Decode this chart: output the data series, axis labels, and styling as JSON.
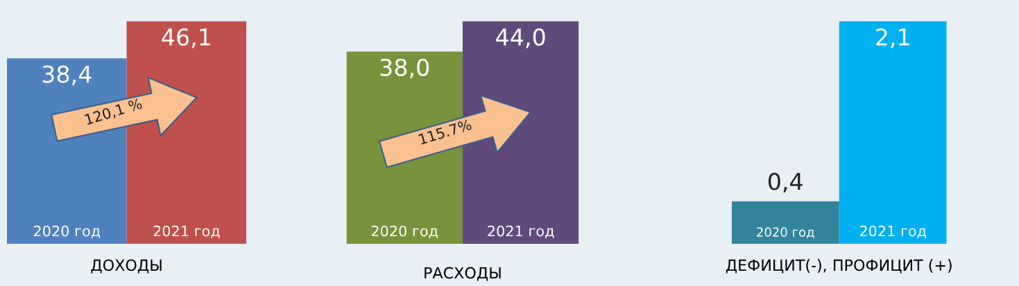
{
  "chart_data": [
    {
      "type": "bar",
      "xlabel": "ДОХОДЫ",
      "categories": [
        "2020 год",
        "2021 год"
      ],
      "values": [
        38.4,
        46.1
      ],
      "colors": [
        "#4f81bd",
        "#c0504d"
      ],
      "value_labels": [
        "38,4",
        "46,1"
      ],
      "annotations": [
        "120,1 %"
      ]
    },
    {
      "type": "bar",
      "xlabel": "РАСХОДЫ",
      "categories": [
        "2020 год",
        "2021 год"
      ],
      "values": [
        38.0,
        44.0
      ],
      "colors": [
        "#77933c",
        "#604a7b"
      ],
      "value_labels": [
        "38,0",
        "44,0"
      ],
      "annotations": [
        "115.7%"
      ]
    },
    {
      "type": "bar",
      "xlabel": "ДЕФИЦИТ(-), ПРОФИЦИТ (+)",
      "categories": [
        "2020 год",
        "2021 год"
      ],
      "values": [
        0.4,
        2.1
      ],
      "colors": [
        "#31849b",
        "#00b0f0"
      ],
      "value_labels": [
        "0,4",
        "2,1"
      ]
    }
  ]
}
